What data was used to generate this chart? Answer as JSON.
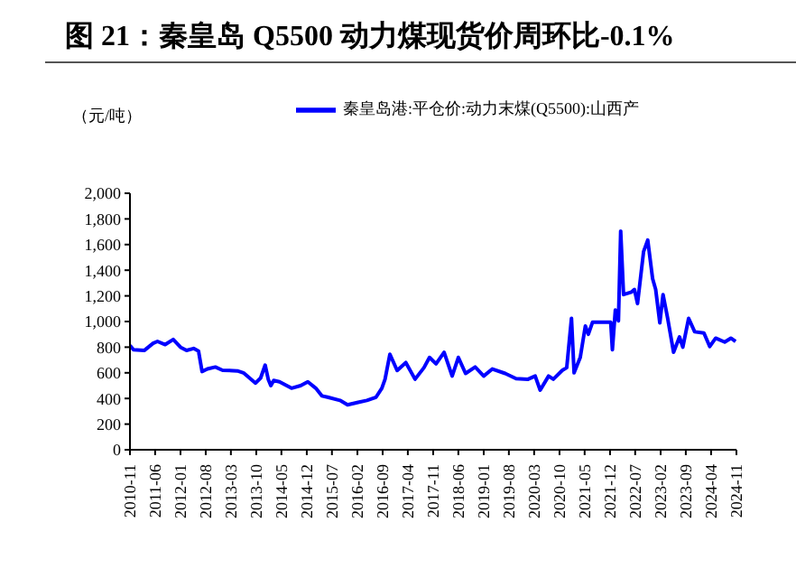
{
  "chart_data": {
    "type": "line",
    "title": "图 21：秦皇岛 Q5500 动力煤现货价周环比-0.1%",
    "ylabel": "（元/吨）",
    "x": [
      "2010-11-01",
      "2010-12-01",
      "2011-03-01",
      "2011-05-15",
      "2011-06-21",
      "2011-08-25",
      "2011-11-01",
      "2012-01-01",
      "2012-02-21",
      "2012-04-21",
      "2012-06-01",
      "2012-07-01",
      "2012-08-15",
      "2012-10-21",
      "2012-12-21",
      "2013-04-25",
      "2013-06-15",
      "2013-09-25",
      "2013-11-07",
      "2013-12-15",
      "2014-01-10",
      "2014-02-01",
      "2014-02-25",
      "2014-04-15",
      "2014-07-25",
      "2014-10-10",
      "2014-12-10",
      "2015-02-15",
      "2015-04-07",
      "2015-05-25",
      "2015-09-07",
      "2015-11-10",
      "2016-02-07",
      "2016-04-21",
      "2016-07-07",
      "2016-08-25",
      "2016-09-21",
      "2016-11-01",
      "2017-01-01",
      "2017-03-15",
      "2017-06-01",
      "2017-08-15",
      "2017-10-01",
      "2017-11-25",
      "2018-02-01",
      "2018-04-10",
      "2018-06-01",
      "2018-08-01",
      "2018-10-21",
      "2019-01-01",
      "2019-03-15",
      "2019-07-01",
      "2019-10-01",
      "2020-01-10",
      "2020-03-10",
      "2020-04-21",
      "2020-07-01",
      "2020-08-10",
      "2020-10-25",
      "2020-12-01",
      "2021-01-10",
      "2021-02-01",
      "2021-03-25",
      "2021-05-07",
      "2021-06-01",
      "2021-07-07",
      "2021-12-07",
      "2021-12-21",
      "2022-01-15",
      "2022-02-10",
      "2022-03-01",
      "2022-03-25",
      "2022-06-01",
      "2022-06-25",
      "2022-07-21",
      "2022-09-10",
      "2022-10-15",
      "2022-11-25",
      "2022-12-21",
      "2023-01-25",
      "2023-02-21",
      "2023-04-01",
      "2023-05-21",
      "2023-07-10",
      "2023-08-07",
      "2023-09-25",
      "2023-11-15",
      "2024-02-01",
      "2024-03-21",
      "2024-05-10",
      "2024-07-25",
      "2024-09-15",
      "2024-10-25"
    ],
    "series": [
      {
        "name": "秦皇岛港:平仓价:动力末煤(Q5500):山西产",
        "color": "#0000ff",
        "values": [
          814,
          780,
          774,
          830,
          845,
          820,
          860,
          800,
          775,
          790,
          770,
          610,
          630,
          645,
          620,
          615,
          600,
          520,
          560,
          660,
          550,
          500,
          540,
          530,
          480,
          500,
          530,
          480,
          420,
          410,
          385,
          350,
          370,
          385,
          410,
          480,
          550,
          745,
          618,
          680,
          550,
          640,
          720,
          670,
          760,
          575,
          720,
          595,
          645,
          575,
          630,
          595,
          555,
          550,
          575,
          465,
          575,
          550,
          620,
          640,
          1025,
          600,
          720,
          965,
          900,
          995,
          995,
          780,
          1090,
          1005,
          1705,
          1210,
          1230,
          1250,
          1140,
          1545,
          1635,
          1335,
          1250,
          990,
          1210,
          1025,
          760,
          880,
          800,
          1025,
          920,
          910,
          805,
          870,
          840,
          870,
          845
        ]
      }
    ],
    "xlim": [
      "2010-11",
      "2024-11"
    ],
    "xticks": [
      "2010-11",
      "2011-06",
      "2012-01",
      "2012-08",
      "2013-03",
      "2013-10",
      "2014-05",
      "2014-12",
      "2015-07",
      "2016-02",
      "2016-09",
      "2017-04",
      "2017-11",
      "2018-06",
      "2019-01",
      "2019-08",
      "2020-03",
      "2020-10",
      "2021-05",
      "2021-12",
      "2022-07",
      "2023-02",
      "2023-09",
      "2024-04",
      "2024-11"
    ],
    "ylim": [
      0,
      2000
    ],
    "yticks": [
      0,
      200,
      400,
      600,
      800,
      {
        "value": 1000,
        "label": "1,000"
      },
      {
        "value": 1200,
        "label": "1,200"
      },
      {
        "value": 1400,
        "label": "1,400"
      },
      {
        "value": 1600,
        "label": "1,600"
      },
      {
        "value": 1800,
        "label": "1,800"
      },
      {
        "value": 2000,
        "label": "2,000"
      }
    ],
    "grid": false,
    "legend": "top",
    "marker": "none",
    "line_style": "solid"
  }
}
